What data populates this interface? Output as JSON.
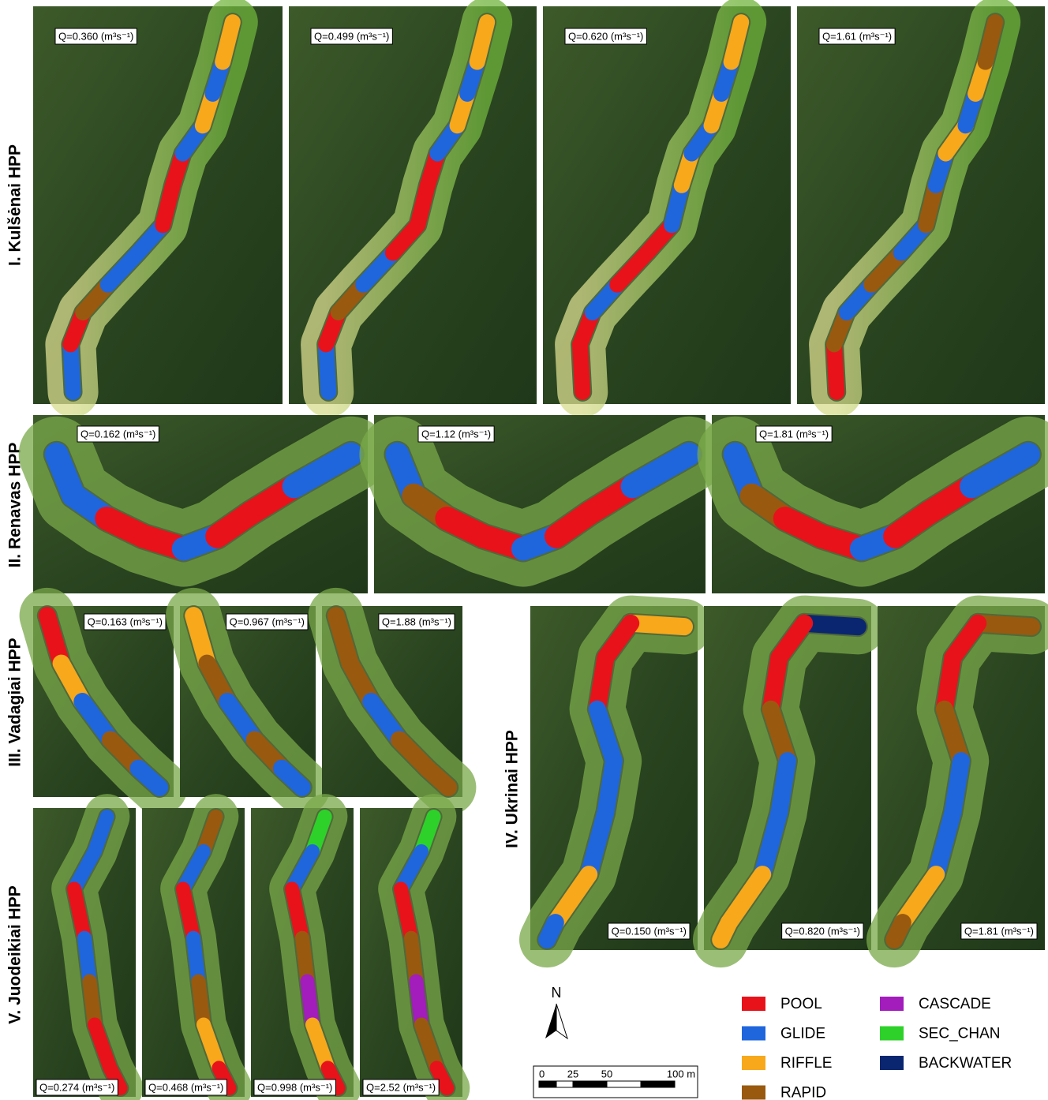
{
  "sites": [
    {
      "label": "I. Kulšėnai HPP",
      "panels": [
        "Q=0.360 (m³s⁻¹)",
        "Q=0.499 (m³s⁻¹)",
        "Q=0.620 (m³s⁻¹)",
        "Q=1.61 (m³s⁻¹)"
      ]
    },
    {
      "label": "II. Renavas HPP",
      "panels": [
        "Q=0.162 (m³s⁻¹)",
        "Q=1.12 (m³s⁻¹)",
        "Q=1.81 (m³s⁻¹)"
      ]
    },
    {
      "label": "III. Vadagiai HPP",
      "panels": [
        "Q=0.163 (m³s⁻¹)",
        "Q=0.967 (m³s⁻¹)",
        "Q=1.88 (m³s⁻¹)"
      ]
    },
    {
      "label": "IV. Ukrinai HPP",
      "panels": [
        "Q=0.150 (m³s⁻¹)",
        "Q=0.820 (m³s⁻¹)",
        "Q=1.81 (m³s⁻¹)"
      ]
    },
    {
      "label": "V. Juodeikiai HPP",
      "panels": [
        "Q=0.274 (m³s⁻¹)",
        "Q=0.468 (m³s⁻¹)",
        "Q=0.998 (m³s⁻¹)",
        "Q=2.52 (m³s⁻¹)"
      ]
    }
  ],
  "legend": [
    {
      "label": "POOL",
      "color": "#e8121b"
    },
    {
      "label": "GLIDE",
      "color": "#1f66dd"
    },
    {
      "label": "RIFFLE",
      "color": "#f7a81b"
    },
    {
      "label": "RAPID",
      "color": "#99590f"
    },
    {
      "label": "CASCADE",
      "color": "#a21dbb"
    },
    {
      "label": "SEC_CHAN",
      "color": "#2ed12a"
    },
    {
      "label": "BACKWATER",
      "color": "#0b2670"
    }
  ],
  "north": "N",
  "scale_bar": [
    "0",
    "25",
    "50",
    "100 m"
  ]
}
